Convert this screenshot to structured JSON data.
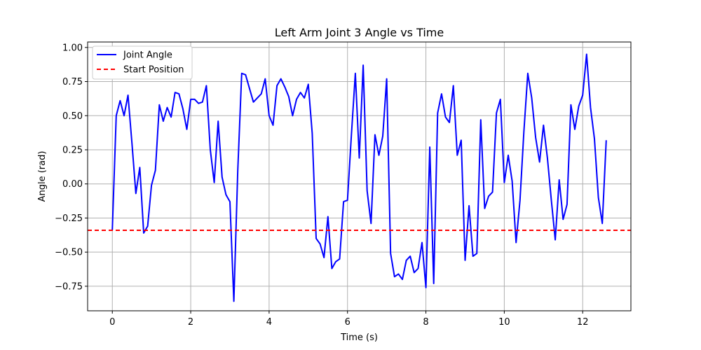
{
  "chart_data": {
    "type": "line",
    "title": "Left Arm Joint 3 Angle vs Time",
    "xlabel": "Time (s)",
    "ylabel": "Angle (rad)",
    "xlim": [
      -0.63,
      13.23
    ],
    "ylim": [
      -0.93,
      1.04
    ],
    "xticks": [
      0,
      2,
      4,
      6,
      8,
      10,
      12
    ],
    "yticks": [
      -0.75,
      -0.5,
      -0.25,
      0.0,
      0.25,
      0.5,
      0.75,
      1.0
    ],
    "xtick_labels": [
      "0",
      "2",
      "4",
      "6",
      "8",
      "10",
      "12"
    ],
    "ytick_labels": [
      "−0.75",
      "−0.50",
      "−0.25",
      "0.00",
      "0.25",
      "0.50",
      "0.75",
      "1.00"
    ],
    "grid": true,
    "legend_position": "top-left",
    "series": [
      {
        "name": "Joint Angle",
        "color": "#0000ff",
        "style": "solid",
        "x": [
          0.0,
          0.1,
          0.2,
          0.3,
          0.4,
          0.5,
          0.6,
          0.7,
          0.8,
          0.9,
          1.0,
          1.1,
          1.2,
          1.3,
          1.4,
          1.5,
          1.6,
          1.7,
          1.8,
          1.9,
          2.0,
          2.1,
          2.2,
          2.3,
          2.4,
          2.5,
          2.6,
          2.7,
          2.8,
          2.9,
          3.0,
          3.1,
          3.2,
          3.3,
          3.4,
          3.5,
          3.6,
          3.7,
          3.8,
          3.9,
          4.0,
          4.1,
          4.2,
          4.3,
          4.4,
          4.5,
          4.6,
          4.7,
          4.8,
          4.9,
          5.0,
          5.1,
          5.2,
          5.3,
          5.4,
          5.5,
          5.6,
          5.7,
          5.8,
          5.9,
          6.0,
          6.1,
          6.2,
          6.3,
          6.4,
          6.5,
          6.6,
          6.7,
          6.8,
          6.9,
          7.0,
          7.1,
          7.2,
          7.3,
          7.4,
          7.5,
          7.6,
          7.7,
          7.8,
          7.9,
          8.0,
          8.1,
          8.2,
          8.3,
          8.4,
          8.5,
          8.6,
          8.7,
          8.8,
          8.9,
          9.0,
          9.1,
          9.2,
          9.3,
          9.4,
          9.5,
          9.6,
          9.7,
          9.8,
          9.9,
          10.0,
          10.1,
          10.2,
          10.3,
          10.4,
          10.5,
          10.6,
          10.7,
          10.8,
          10.9,
          11.0,
          11.1,
          11.2,
          11.3,
          11.4,
          11.5,
          11.6,
          11.7,
          11.8,
          11.9,
          12.0,
          12.1,
          12.2,
          12.3,
          12.4,
          12.5,
          12.6
        ],
        "y": [
          -0.34,
          0.5,
          0.61,
          0.5,
          0.65,
          0.3,
          -0.07,
          0.12,
          -0.36,
          -0.31,
          -0.01,
          0.1,
          0.58,
          0.46,
          0.56,
          0.49,
          0.67,
          0.66,
          0.55,
          0.4,
          0.62,
          0.62,
          0.59,
          0.6,
          0.72,
          0.25,
          0.01,
          0.46,
          0.05,
          -0.08,
          -0.13,
          -0.86,
          0.1,
          0.81,
          0.8,
          0.7,
          0.6,
          0.63,
          0.66,
          0.77,
          0.5,
          0.43,
          0.72,
          0.77,
          0.71,
          0.64,
          0.5,
          0.62,
          0.67,
          0.63,
          0.73,
          0.37,
          -0.4,
          -0.44,
          -0.54,
          -0.24,
          -0.62,
          -0.57,
          -0.55,
          -0.13,
          -0.12,
          0.36,
          0.81,
          0.19,
          0.87,
          -0.05,
          -0.29,
          0.36,
          0.21,
          0.35,
          0.77,
          -0.51,
          -0.68,
          -0.66,
          -0.7,
          -0.56,
          -0.53,
          -0.65,
          -0.62,
          -0.43,
          -0.76,
          0.27,
          -0.73,
          0.52,
          0.66,
          0.49,
          0.45,
          0.72,
          0.21,
          0.32,
          -0.56,
          -0.16,
          -0.53,
          -0.51,
          0.47,
          -0.18,
          -0.09,
          -0.06,
          0.52,
          0.62,
          0.01,
          0.21,
          0.02,
          -0.43,
          -0.12,
          0.38,
          0.81,
          0.63,
          0.34,
          0.16,
          0.43,
          0.19,
          -0.12,
          -0.41,
          0.03,
          -0.26,
          -0.15,
          0.58,
          0.4,
          0.57,
          0.65,
          0.95,
          0.56,
          0.33,
          -0.1,
          -0.29,
          0.32
        ]
      },
      {
        "name": "Start Position",
        "color": "#ff0000",
        "style": "dashed",
        "hline": -0.34
      }
    ]
  }
}
